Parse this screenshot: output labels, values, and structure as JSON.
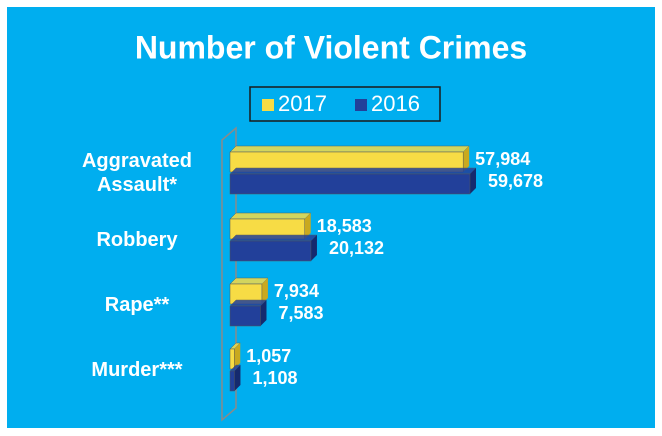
{
  "chart_data": {
    "type": "bar",
    "orientation": "horizontal",
    "title": "Number of Violent Crimes",
    "categories": [
      "Aggravated Assault*",
      "Robbery",
      "Rape**",
      "Murder***"
    ],
    "series": [
      {
        "name": "2017",
        "color": "#f7dc45",
        "values": [
          57984,
          18583,
          7934,
          1057
        ],
        "value_labels": [
          "57,984",
          "18,583",
          "7,934",
          "1,057"
        ]
      },
      {
        "name": "2016",
        "color": "#22409a",
        "values": [
          59678,
          20132,
          7583,
          1108
        ],
        "value_labels": [
          "59,678",
          "20,132",
          "7,583",
          "1,108"
        ]
      }
    ],
    "legend": "top"
  }
}
